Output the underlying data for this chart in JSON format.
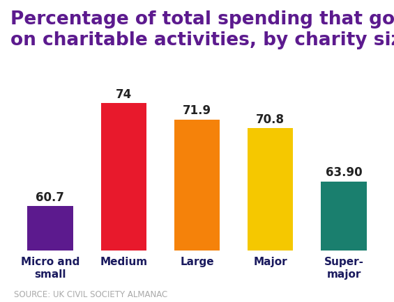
{
  "categories": [
    "Micro and\nsmall",
    "Medium",
    "Large",
    "Major",
    "Super-\nmajor"
  ],
  "values": [
    60.7,
    74,
    71.9,
    70.8,
    63.9
  ],
  "value_labels": [
    "60.7",
    "74",
    "71.9",
    "70.8",
    "63.90"
  ],
  "bar_colors": [
    "#5c1a8e",
    "#e8192c",
    "#f5820a",
    "#f5c800",
    "#1a7f6e"
  ],
  "title_line1": "Percentage of total spending that goes",
  "title_line2": "on charitable activities, by charity size",
  "title_color": "#5c1a8e",
  "title_fontsize": 19,
  "source": "SOURCE: UK CIVIL SOCIETY ALMANAC",
  "source_fontsize": 8.5,
  "ymin": 55,
  "ymax": 80,
  "value_label_fontsize": 12,
  "xlabel_fontsize": 11,
  "xlabel_color": "#1a1a5e",
  "background_color": "#ffffff"
}
